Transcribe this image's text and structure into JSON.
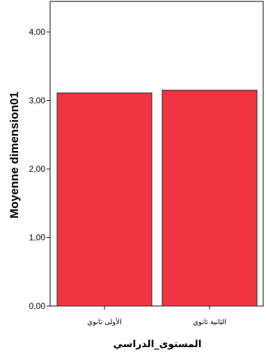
{
  "chart_data": {
    "type": "bar",
    "categories": [
      "الأولى ثانوي",
      "الثانية ثانوي"
    ],
    "values": [
      3.11,
      3.15
    ],
    "title": "",
    "xlabel": "المستوى_الدراسي",
    "ylabel": "Moyenne dimension01",
    "ylim": [
      0,
      4.4
    ],
    "yticks": [
      0,
      1,
      2,
      3,
      4
    ],
    "ytick_labels": [
      "0,00",
      "1,00",
      "2,00",
      "3,00",
      "4,00"
    ],
    "grid": false,
    "colors": {
      "bar_fill": "#f03540",
      "bar_stroke": "#222222",
      "axis": "#000000"
    }
  }
}
